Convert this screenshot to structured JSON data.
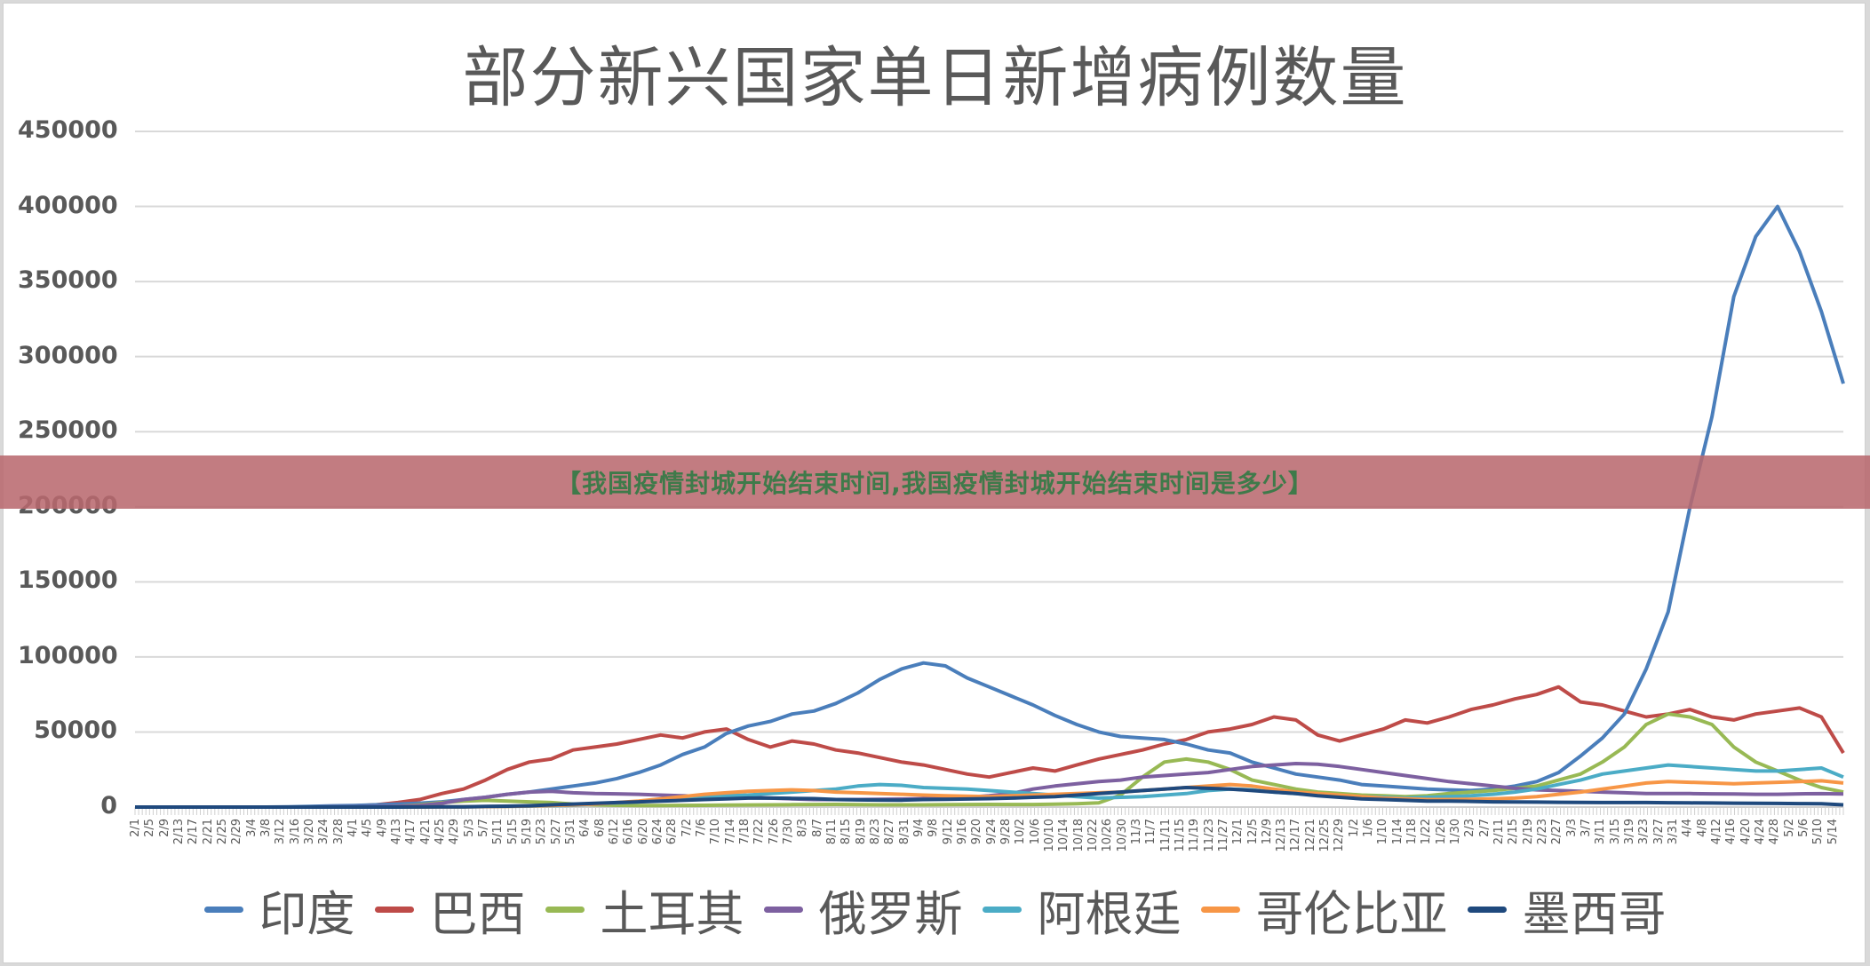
{
  "banner": {
    "text": "【我国疫情封城开始结束时间,我国疫情封城开始结束时间是多少】"
  },
  "chart_data": {
    "type": "line",
    "title": "部分新兴国家单日新增病例数量",
    "xlabel": "",
    "ylabel": "",
    "ylim": [
      0,
      450000
    ],
    "yticks": [
      0,
      50000,
      100000,
      150000,
      200000,
      250000,
      300000,
      350000,
      400000,
      450000
    ],
    "ytick_labels": [
      "0",
      "50000",
      "100000",
      "150000",
      "200000",
      "250000",
      "300000",
      "350000",
      "400000",
      "450000"
    ],
    "grid": true,
    "legend_position": "bottom",
    "x_start": "2020-02-01",
    "x_end": "2021-05-17",
    "x_tick_labels": [
      "2/1",
      "2/5",
      "2/9",
      "2/13",
      "2/17",
      "2/21",
      "2/25",
      "2/29",
      "3/4",
      "3/8",
      "3/12",
      "3/16",
      "3/20",
      "3/24",
      "3/28",
      "4/1",
      "4/5",
      "4/9",
      "4/13",
      "4/17",
      "4/21",
      "4/25",
      "4/29",
      "5/3",
      "5/7",
      "5/11",
      "5/15",
      "5/19",
      "5/23",
      "5/27",
      "5/31",
      "6/4",
      "6/8",
      "6/12",
      "6/16",
      "6/20",
      "6/24",
      "6/28",
      "7/2",
      "7/6",
      "7/10",
      "7/14",
      "7/18",
      "7/22",
      "7/26",
      "7/30",
      "8/3",
      "8/7",
      "8/11",
      "8/15",
      "8/19",
      "8/23",
      "8/27",
      "8/31",
      "9/4",
      "9/8",
      "9/12",
      "9/16",
      "9/20",
      "9/24",
      "9/28",
      "10/2",
      "10/6",
      "10/10",
      "10/14",
      "10/18",
      "10/22",
      "10/26",
      "10/30",
      "11/3",
      "11/7",
      "11/11",
      "11/15",
      "11/19",
      "11/23",
      "11/27",
      "12/1",
      "12/5",
      "12/9",
      "12/13",
      "12/17",
      "12/21",
      "12/25",
      "12/29",
      "1/2",
      "1/6",
      "1/10",
      "1/14",
      "1/18",
      "1/22",
      "1/26",
      "1/30",
      "2/3",
      "2/7",
      "2/11",
      "2/15",
      "2/19",
      "2/23",
      "2/27",
      "3/3",
      "3/7",
      "3/11",
      "3/15",
      "3/19",
      "3/23",
      "3/27",
      "3/31",
      "4/4",
      "4/8",
      "4/12",
      "4/16",
      "4/20",
      "4/24",
      "4/28",
      "5/2",
      "5/6",
      "5/10",
      "5/14"
    ],
    "sampling": "approx. weekly values (every 7 days starting 2020-02-01), estimated from gridlines",
    "series": [
      {
        "name": "印度",
        "color": "#4a7ebb",
        "values": [
          0,
          0,
          0,
          0,
          0,
          0,
          0,
          100,
          500,
          800,
          1000,
          1500,
          2000,
          2600,
          3500,
          5000,
          6500,
          8500,
          10000,
          12000,
          14000,
          16000,
          19000,
          23000,
          28000,
          35000,
          40000,
          49000,
          54000,
          57000,
          62000,
          64000,
          69000,
          76000,
          85000,
          92000,
          96000,
          94000,
          86000,
          80000,
          74000,
          68000,
          61000,
          55000,
          50000,
          47000,
          46000,
          45000,
          42000,
          38000,
          36000,
          30000,
          26000,
          22000,
          20000,
          18000,
          15000,
          14000,
          13000,
          12000,
          11500,
          11000,
          12000,
          14000,
          17000,
          23000,
          34000,
          46000,
          62000,
          92000,
          130000,
          200000,
          260000,
          340000,
          380000,
          400000,
          370000,
          330000,
          282000
        ]
      },
      {
        "name": "巴西",
        "color": "#be4b48",
        "values": [
          0,
          0,
          0,
          0,
          0,
          0,
          0,
          0,
          0,
          200,
          800,
          1500,
          3000,
          5000,
          9000,
          12000,
          18000,
          25000,
          30000,
          32000,
          38000,
          40000,
          42000,
          45000,
          48000,
          46000,
          50000,
          52000,
          45000,
          40000,
          44000,
          42000,
          38000,
          36000,
          33000,
          30000,
          28000,
          25000,
          22000,
          20000,
          23000,
          26000,
          24000,
          28000,
          32000,
          35000,
          38000,
          42000,
          45000,
          50000,
          52000,
          55000,
          60000,
          58000,
          48000,
          44000,
          48000,
          52000,
          58000,
          56000,
          60000,
          65000,
          68000,
          72000,
          75000,
          80000,
          70000,
          68000,
          64000,
          60000,
          62000,
          65000,
          60000,
          58000,
          62000,
          64000,
          66000,
          60000,
          36000
        ]
      },
      {
        "name": "土耳其",
        "color": "#98b954",
        "values": [
          0,
          0,
          0,
          0,
          0,
          0,
          0,
          0,
          0,
          0,
          0,
          0,
          500,
          1500,
          3000,
          4000,
          4500,
          4000,
          3500,
          3000,
          2000,
          1500,
          1200,
          1000,
          1000,
          1100,
          1200,
          1300,
          1400,
          1500,
          1600,
          1700,
          1800,
          1600,
          1500,
          1500,
          1500,
          1600,
          1700,
          1800,
          1700,
          1700,
          1900,
          2200,
          2800,
          8000,
          20000,
          30000,
          32000,
          30000,
          25000,
          18000,
          15000,
          12000,
          10000,
          9000,
          8000,
          7500,
          7000,
          7500,
          9000,
          10000,
          11000,
          12500,
          14000,
          18000,
          22000,
          30000,
          40000,
          55000,
          62000,
          60000,
          55000,
          40000,
          30000,
          24000,
          18000,
          13000,
          10000
        ]
      },
      {
        "name": "俄罗斯",
        "color": "#7d60a0",
        "values": [
          0,
          0,
          0,
          0,
          0,
          0,
          0,
          0,
          0,
          100,
          200,
          300,
          500,
          1000,
          2500,
          5000,
          6500,
          8500,
          10000,
          10500,
          9500,
          9000,
          8800,
          8500,
          8000,
          7500,
          7000,
          6800,
          6500,
          6000,
          5500,
          5000,
          5000,
          5000,
          5200,
          5300,
          5600,
          6000,
          6500,
          7500,
          9000,
          12000,
          14000,
          15500,
          17000,
          18000,
          20000,
          21000,
          22000,
          23000,
          25000,
          27000,
          28000,
          29000,
          28500,
          27000,
          25000,
          23000,
          21000,
          19000,
          17000,
          15500,
          14000,
          12500,
          11500,
          11000,
          10500,
          10000,
          9500,
          9000,
          9000,
          9000,
          8800,
          8700,
          8500,
          8500,
          8800,
          8900,
          8700
        ]
      },
      {
        "name": "阿根廷",
        "color": "#4bacc6",
        "values": [
          0,
          0,
          0,
          0,
          0,
          0,
          0,
          0,
          0,
          0,
          0,
          0,
          0,
          0,
          100,
          200,
          300,
          400,
          600,
          900,
          1200,
          2000,
          2800,
          3500,
          4500,
          5500,
          6500,
          7500,
          8000,
          9000,
          10000,
          11000,
          12000,
          14000,
          15000,
          14500,
          13000,
          12500,
          12000,
          11000,
          10000,
          9000,
          8000,
          7000,
          6000,
          6500,
          7000,
          8000,
          9000,
          11000,
          12000,
          11500,
          10000,
          9000,
          8000,
          7500,
          7000,
          6500,
          6000,
          6500,
          7000,
          7500,
          8500,
          10000,
          12000,
          15000,
          18000,
          22000,
          24000,
          26000,
          28000,
          27000,
          26000,
          25000,
          24000,
          24000,
          25000,
          26000,
          20000
        ]
      },
      {
        "name": "哥伦比亚",
        "color": "#f79646",
        "values": [
          0,
          0,
          0,
          0,
          0,
          0,
          0,
          0,
          0,
          0,
          0,
          0,
          0,
          50,
          100,
          200,
          300,
          500,
          700,
          1000,
          1500,
          2000,
          3000,
          4000,
          5500,
          7000,
          8500,
          9500,
          10500,
          11000,
          11500,
          11000,
          10000,
          9500,
          9000,
          8500,
          8000,
          7500,
          7200,
          7000,
          7500,
          8000,
          8500,
          9000,
          9500,
          10000,
          11000,
          12000,
          13000,
          14000,
          15000,
          14000,
          12000,
          10000,
          9000,
          8000,
          7000,
          6000,
          5500,
          5000,
          5000,
          5200,
          5500,
          6000,
          7000,
          8500,
          10000,
          12000,
          14000,
          16000,
          17000,
          16500,
          16000,
          15500,
          16000,
          16500,
          17000,
          17500,
          16000
        ]
      },
      {
        "name": "墨西哥",
        "color": "#1f497d",
        "values": [
          0,
          0,
          0,
          0,
          0,
          0,
          0,
          0,
          0,
          0,
          0,
          0,
          0,
          50,
          100,
          200,
          400,
          600,
          900,
          1500,
          2000,
          2500,
          3000,
          3500,
          4000,
          4500,
          5000,
          5500,
          6000,
          6000,
          5800,
          5600,
          5000,
          4800,
          4700,
          4600,
          5000,
          5200,
          5400,
          5600,
          6000,
          6500,
          7000,
          8000,
          9000,
          10000,
          11000,
          12000,
          13000,
          12500,
          12000,
          11000,
          10000,
          9000,
          7500,
          6500,
          5500,
          5000,
          4500,
          4000,
          4000,
          3800,
          3500,
          3400,
          3300,
          3200,
          3100,
          3000,
          3000,
          3000,
          2900,
          2800,
          2700,
          2600,
          2500,
          2400,
          2300,
          2200,
          1500
        ]
      }
    ]
  },
  "legend": {
    "items": [
      {
        "label": "印度",
        "color": "#4a7ebb"
      },
      {
        "label": "巴西",
        "color": "#be4b48"
      },
      {
        "label": "土耳其",
        "color": "#98b954"
      },
      {
        "label": "俄罗斯",
        "color": "#7d60a0"
      },
      {
        "label": "阿根廷",
        "color": "#4bacc6"
      },
      {
        "label": "哥伦比亚",
        "color": "#f79646"
      },
      {
        "label": "墨西哥",
        "color": "#1f497d"
      }
    ]
  }
}
